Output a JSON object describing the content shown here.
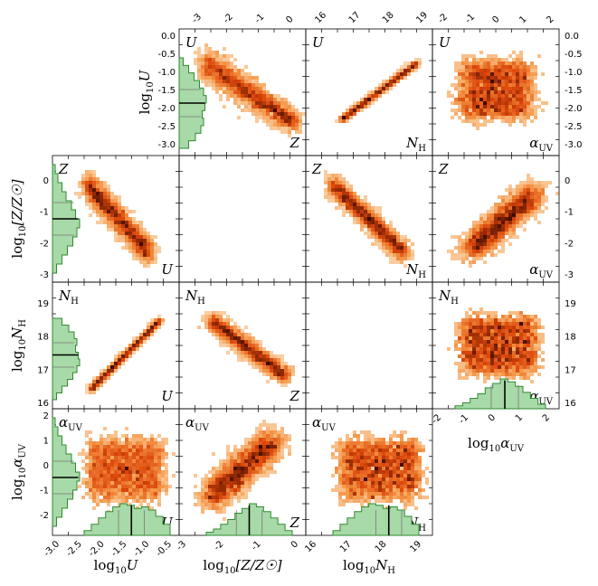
{
  "figure": {
    "colors": {
      "hist_fill": "#a8d9a8",
      "hist_edge": "#2e8b2e",
      "median_line": "#000000",
      "density_low": "#fde5c8",
      "density_mid": "#e8590c",
      "density_high": "#3a0a00"
    },
    "chart_data": {
      "type": "scatter",
      "variables": [
        {
          "key": "U",
          "label_main": "U",
          "axis_label": "log10U",
          "panel_label": "U",
          "range": [
            -3.3,
            -0.3
          ],
          "ticks_y": [
            "0.0",
            "-0.5",
            "-1.0",
            "-1.5",
            "-2.0",
            "-2.5",
            "-3.0"
          ],
          "ticks_x": [
            "-3.0",
            "-2.5",
            "-2.0",
            "-1.5",
            "-1.0",
            "-0.5"
          ],
          "median": -1.65
        },
        {
          "key": "Z",
          "axis_label": "log10[Z/Z☉]",
          "panel_label": "Z",
          "range": [
            -3.0,
            0.7
          ],
          "ticks_y": [
            "0",
            "-1",
            "-2",
            "-3"
          ],
          "ticks_x": [
            "-3",
            "-2",
            "-1",
            "0"
          ],
          "median": -1.1
        },
        {
          "key": "NH",
          "axis_label": "log10NH",
          "panel_label": "NH",
          "range": [
            15.3,
            19.4
          ],
          "ticks_y": [
            "16",
            "17",
            "18",
            "19"
          ],
          "ticks_x": [
            "16",
            "17",
            "18",
            "19"
          ],
          "median": 17.75
        },
        {
          "key": "aUV",
          "axis_label": "log10αUV",
          "panel_label": "αUV",
          "range": [
            -2.3,
            2.1
          ],
          "ticks_y": [
            "2",
            "1",
            "0",
            "-1",
            "-2"
          ],
          "ticks_x": [
            "-2",
            "-1",
            "0",
            "1",
            "2"
          ],
          "median": -0.3
        }
      ],
      "grid": false,
      "top_axis_ticks": {
        "col1": [
          "-3",
          "-2",
          "-1",
          "0"
        ],
        "col2": [
          "16",
          "17",
          "18",
          "19"
        ],
        "col3": [
          "-2",
          "-1",
          "0",
          "1",
          "2"
        ]
      },
      "right_axis_ticks": {
        "row0": [
          "0.0",
          "-0.5",
          "-1.0",
          "-1.5",
          "-2.0",
          "-2.5",
          "-3.0"
        ],
        "row1": [
          "0",
          "-1",
          "-2",
          "-3"
        ],
        "row2": [
          "19",
          "18",
          "17",
          "16"
        ]
      },
      "bottom_axis_ticks": {
        "row2col3": [
          "-2",
          "-1",
          "0",
          "1",
          "2"
        ]
      }
    }
  }
}
